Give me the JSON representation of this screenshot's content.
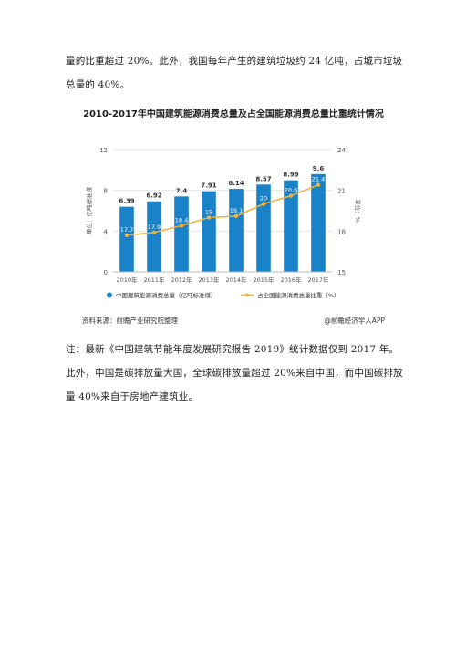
{
  "text": {
    "para1": "量的比重超过 20%。此外，我国每年产生的建筑垃圾约 24 亿吨，占城市垃圾总量的 40%。",
    "para2": "注：最新《中国建筑节能年度发展研究报告 2019》统计数据仅到 2017 年。此外，中国是碳排放量大国，全球碳排放量超过 20%来自中国，而中国碳排放量 40%来自于房地产建筑业。"
  },
  "figure": {
    "source_left": "资料来源：前瞻产业研究院整理",
    "source_right": "@前瞻经济学人APP"
  },
  "colors": {
    "bar": "#1a82c8",
    "line": "#f0b33a",
    "grid": "#e4e4e4",
    "axis_text": "#555555"
  },
  "chart_data": {
    "type": "bar",
    "title": "2010-2017年中国建筑能源消费总量及占全国能源消费总量比重统计情况",
    "categories": [
      "2010年",
      "2011年",
      "2012年",
      "2013年",
      "2014年",
      "2015年",
      "2016年",
      "2017年"
    ],
    "series": [
      {
        "name": "中国建筑能源消费总量（亿吨标准煤）",
        "type": "bar",
        "axis": "left",
        "values": [
          6.39,
          6.92,
          7.4,
          7.91,
          8.14,
          8.57,
          8.99,
          9.6
        ]
      },
      {
        "name": "占全国能源消费总量比重（%）",
        "type": "line",
        "axis": "right",
        "values": [
          17.7,
          17.9,
          18.4,
          19,
          19.1,
          20,
          20.6,
          21.4
        ]
      }
    ],
    "ylabel": "单位：亿吨标准煤",
    "ylabel_right": "单位：%",
    "ylim": [
      0,
      12
    ],
    "yticks": [
      0,
      4,
      8,
      12
    ],
    "ylim_right": [
      15,
      24
    ],
    "yticks_right": [
      15,
      18,
      21,
      24
    ],
    "grid": true,
    "legend_position": "bottom"
  }
}
